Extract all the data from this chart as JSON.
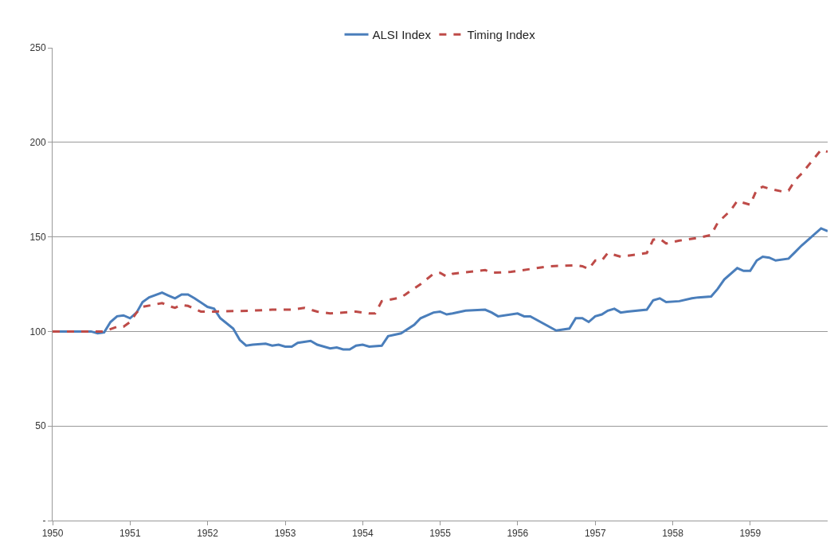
{
  "chart_data": {
    "type": "line",
    "x": [
      "1950-01",
      "1950-07",
      "1950-08",
      "1950-09",
      "1950-10",
      "1950-11",
      "1950-12",
      "1951-01",
      "1951-02",
      "1951-03",
      "1951-04",
      "1951-06",
      "1951-07",
      "1951-08",
      "1951-09",
      "1951-10",
      "1951-11",
      "1952-01",
      "1952-02",
      "1952-03",
      "1952-05",
      "1952-06",
      "1952-07",
      "1952-08",
      "1952-10",
      "1952-11",
      "1952-12",
      "1953-01",
      "1953-02",
      "1953-03",
      "1953-05",
      "1953-06",
      "1953-08",
      "1953-09",
      "1953-10",
      "1953-11",
      "1953-12",
      "1954-01",
      "1954-02",
      "1954-04",
      "1954-05",
      "1954-07",
      "1954-09",
      "1954-10",
      "1954-12",
      "1955-01",
      "1955-02",
      "1955-03",
      "1955-05",
      "1955-08",
      "1955-09",
      "1955-10",
      "1956-01",
      "1956-02",
      "1956-03",
      "1956-07",
      "1956-09",
      "1956-10",
      "1956-11",
      "1956-12",
      "1957-01",
      "1957-02",
      "1957-03",
      "1957-04",
      "1957-05",
      "1957-06",
      "1957-09",
      "1957-10",
      "1957-11",
      "1957-12",
      "1958-02",
      "1958-04",
      "1958-05",
      "1958-07",
      "1958-08",
      "1958-09",
      "1958-11",
      "1958-12",
      "1959-01",
      "1959-02",
      "1959-03",
      "1959-04",
      "1959-05",
      "1959-07",
      "1959-08",
      "1959-09",
      "1959-12",
      "1960-01"
    ],
    "series": [
      {
        "name": "ALSI Index",
        "color": "#4a7ebb",
        "line_style": "solid",
        "values": [
          100,
          100,
          99,
          99.5,
          105,
          108,
          108.5,
          107,
          110,
          115.5,
          118,
          120.5,
          119,
          117.5,
          119.5,
          119.5,
          117.5,
          113,
          112,
          107,
          101.5,
          95.5,
          92.5,
          93,
          93.5,
          92.5,
          93,
          92,
          92,
          94,
          95,
          93,
          91,
          91.5,
          90.5,
          90.5,
          92.5,
          93,
          92,
          92.5,
          97.5,
          99,
          103.5,
          107,
          110,
          110.5,
          109,
          109.5,
          111,
          111.5,
          110,
          108,
          109.5,
          108,
          108,
          100.5,
          101.5,
          107,
          107,
          105,
          108,
          109,
          111,
          112,
          110,
          110.5,
          111.5,
          116.5,
          117.5,
          115.5,
          116,
          117.5,
          118,
          118.5,
          122.5,
          127.5,
          133.5,
          132,
          132,
          137.5,
          139.5,
          139,
          137.5,
          138.5,
          142,
          145.5,
          154.5,
          153
        ]
      },
      {
        "name": "Timing Index",
        "color": "#be4b48",
        "line_style": "dashed",
        "x": [
          "1950-01",
          "1950-09",
          "1950-11",
          "1950-12",
          "1951-01",
          "1951-02",
          "1951-03",
          "1951-06",
          "1951-07",
          "1951-08",
          "1951-09",
          "1951-10",
          "1951-12",
          "1952-02",
          "1952-08",
          "1952-11",
          "1953-02",
          "1953-04",
          "1953-06",
          "1953-08",
          "1953-12",
          "1954-02",
          "1954-03",
          "1954-04",
          "1954-07",
          "1954-10",
          "1954-12",
          "1955-01",
          "1955-02",
          "1955-03",
          "1955-08",
          "1955-09",
          "1955-12",
          "1956-06",
          "1956-10",
          "1956-11",
          "1956-12",
          "1957-01",
          "1957-02",
          "1957-03",
          "1957-05",
          "1957-07",
          "1957-09",
          "1957-10",
          "1957-11",
          "1957-12",
          "1958-02",
          "1958-05",
          "1958-07",
          "1958-08",
          "1958-10",
          "1958-11",
          "1959-01",
          "1959-02",
          "1959-03",
          "1959-04",
          "1959-06",
          "1959-07",
          "1959-08",
          "1959-09",
          "1959-12",
          "1960-01"
        ],
        "values": [
          100,
          100,
          102.5,
          102.5,
          105,
          110,
          113,
          115,
          113.5,
          112.5,
          114,
          113.5,
          110.5,
          110.5,
          111,
          111.5,
          111.5,
          112.5,
          110.5,
          109.5,
          110.5,
          109.5,
          109.5,
          116,
          118,
          125,
          130.5,
          131,
          129,
          130.5,
          132.5,
          131,
          131.5,
          134.5,
          135,
          134.5,
          133,
          137.5,
          137.5,
          141.5,
          139.5,
          140.5,
          141.5,
          148.5,
          149,
          146.5,
          148,
          149.5,
          151,
          157.5,
          164,
          169,
          167,
          175,
          176.5,
          175.5,
          174,
          174.5,
          180,
          183.5,
          196,
          195
        ]
      }
    ],
    "xlim": [
      "1950",
      "1960"
    ],
    "xticks": [
      "1950",
      "1951",
      "1952",
      "1953",
      "1954",
      "1955",
      "1956",
      "1957",
      "1958",
      "1959"
    ],
    "ylim": [
      0,
      250
    ],
    "yticks": [
      {
        "value": 0,
        "label": "-"
      },
      50,
      100,
      150,
      200,
      250
    ],
    "grid": "y",
    "legend": "top",
    "marker": "none"
  }
}
